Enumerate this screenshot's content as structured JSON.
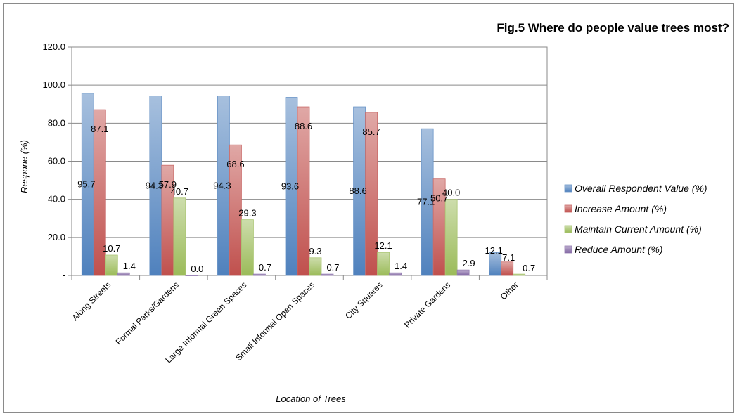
{
  "chart_data": {
    "type": "bar",
    "title": "Fig.5 Where do people value trees most?",
    "xlabel": "Location of Trees",
    "ylabel": "Respone (%)",
    "ylim": [
      0,
      120
    ],
    "yticks": [
      "-",
      "20.0",
      "40.0",
      "60.0",
      "80.0",
      "100.0",
      "120.0"
    ],
    "grid": true,
    "legend_position": "right",
    "categories": [
      "Along Streets",
      "Formal Parks/Gardens",
      "Large Informal Green Spaces",
      "Small Informal Open Spaces",
      "City Squares",
      "Private Gardens",
      "Other"
    ],
    "series": [
      {
        "name": "Overall Respondent Value (%)",
        "color": "#4f81bd",
        "values": [
          95.7,
          94.3,
          94.3,
          93.6,
          88.6,
          77.1,
          12.1
        ],
        "labels": [
          "95.7",
          "94.3",
          "94.3",
          "93.6",
          "88.6",
          "77.1",
          "12.1"
        ]
      },
      {
        "name": "Increase Amount (%)",
        "color": "#c0504d",
        "values": [
          87.1,
          57.9,
          68.6,
          88.6,
          85.7,
          50.7,
          7.1
        ],
        "labels": [
          "87.1",
          "57.9",
          "68.6",
          "88.6",
          "85.7",
          "50.7",
          "7.1"
        ]
      },
      {
        "name": "Maintain Current Amount (%)",
        "color": "#9bbb59",
        "values": [
          10.7,
          40.7,
          29.3,
          9.3,
          12.1,
          40.0,
          0.7
        ],
        "labels": [
          "10.7",
          "40.7",
          "29.3",
          "9.3",
          "12.1",
          "40.0",
          "0.7"
        ]
      },
      {
        "name": "Reduce Amount (%)",
        "color": "#8064a2",
        "values": [
          1.4,
          0.0,
          0.7,
          0.7,
          1.4,
          2.9,
          null
        ],
        "labels": [
          "1.4",
          "0.0",
          "0.7",
          "0.7",
          "1.4",
          "2.9",
          null
        ]
      }
    ]
  }
}
